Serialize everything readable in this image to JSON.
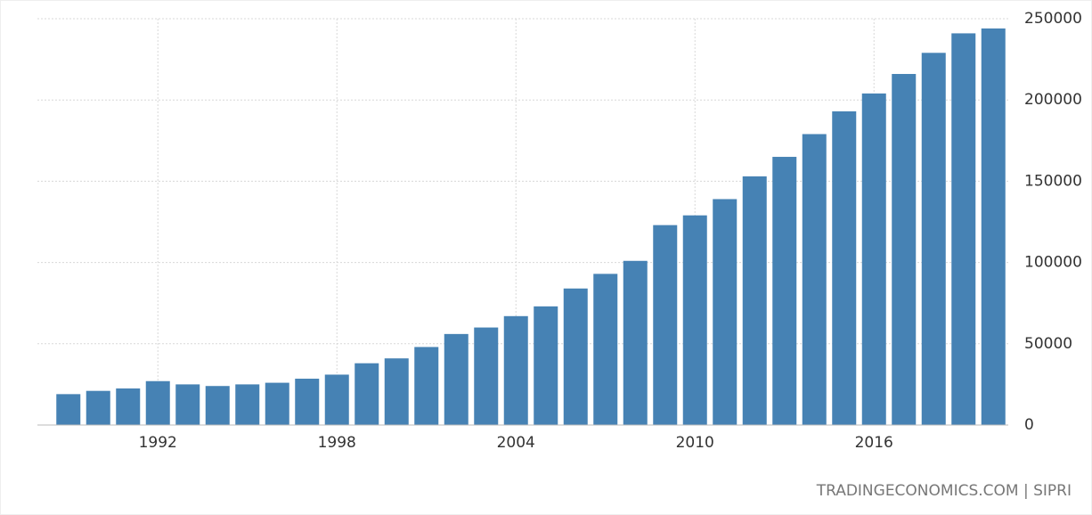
{
  "chart_data": {
    "type": "bar",
    "categories": [
      null,
      null,
      null,
      "1992",
      null,
      null,
      null,
      null,
      null,
      "1998",
      null,
      null,
      null,
      null,
      null,
      "2004",
      null,
      null,
      null,
      null,
      null,
      "2010",
      null,
      null,
      null,
      null,
      null,
      "2016",
      null,
      null,
      null,
      null
    ],
    "values": [
      19000,
      21000,
      22500,
      27000,
      25000,
      24000,
      25000,
      26000,
      28500,
      31000,
      38000,
      41000,
      48000,
      56000,
      60000,
      67000,
      73000,
      84000,
      93000,
      101000,
      123000,
      129000,
      139000,
      153000,
      165000,
      179000,
      193000,
      204000,
      216000,
      229000,
      241000,
      244000
    ],
    "color": "#4682b4",
    "ylim": [
      0,
      250000
    ],
    "yticks": [
      0,
      50000,
      100000,
      150000,
      200000,
      250000
    ],
    "grid": true,
    "source": "TRADINGECONOMICS.COM | SIPRI"
  }
}
